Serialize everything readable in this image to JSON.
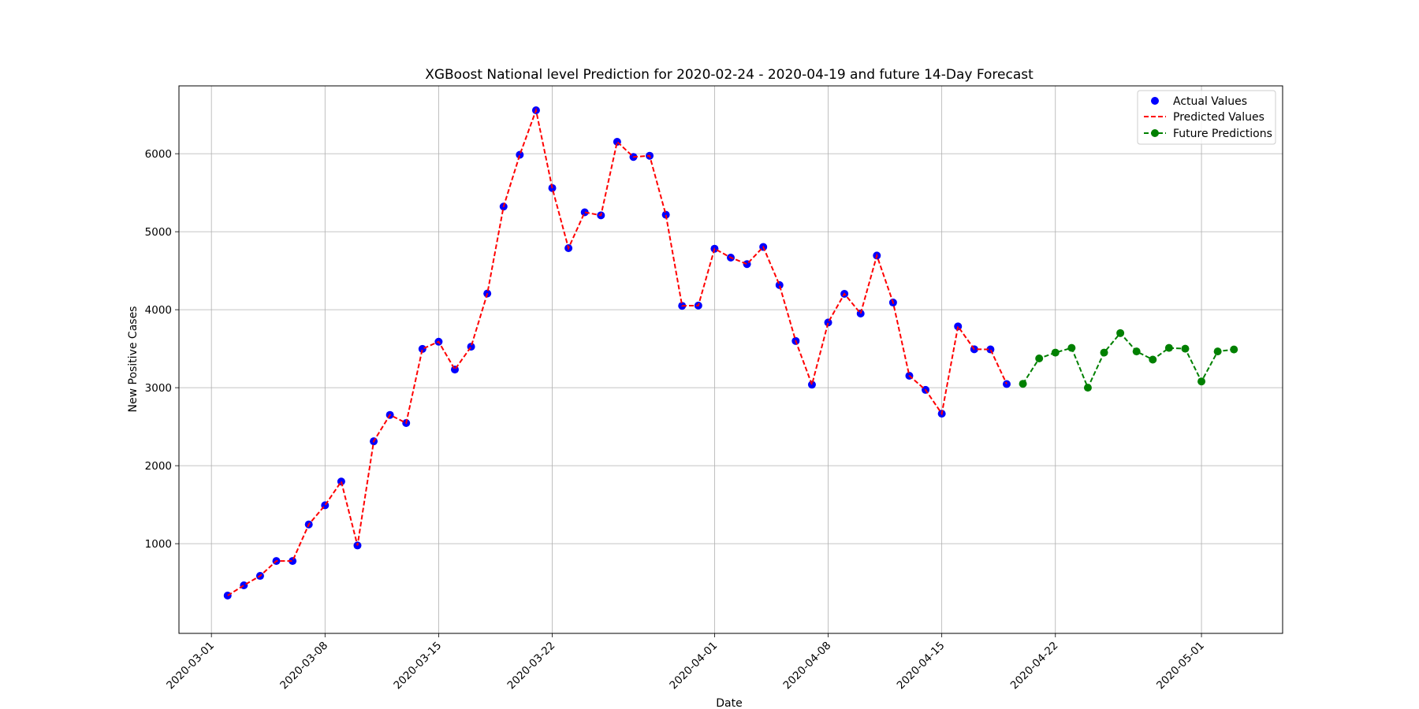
{
  "chart_data": {
    "type": "line",
    "title": "XGBoost National level Prediction for 2020-02-24 - 2020-04-19 and future 14-Day Forecast",
    "xlabel": "Date",
    "ylabel": "New Positive Cases",
    "xlim": [
      "2020-02-28",
      "2020-05-06"
    ],
    "ylim": [
      -150,
      6870
    ],
    "grid": true,
    "legend_position": "top-right",
    "x_ticks": [
      "2020-03-01",
      "2020-03-08",
      "2020-03-15",
      "2020-03-22",
      "2020-04-01",
      "2020-04-08",
      "2020-04-15",
      "2020-04-22",
      "2020-05-01"
    ],
    "y_ticks": [
      1000,
      2000,
      3000,
      4000,
      5000,
      6000
    ],
    "start_date": "2020-03-02",
    "actual": {
      "name": "Actual Values",
      "color": "#0000ff",
      "values": [
        335,
        466,
        587,
        778,
        778,
        1247,
        1492,
        1797,
        977,
        2313,
        2651,
        2547,
        3497,
        3590,
        3233,
        3526,
        4207,
        5322,
        5986,
        6557,
        5560,
        4789,
        5249,
        5210,
        6153,
        5959,
        5974,
        5217,
        4050,
        4053,
        4782,
        4668,
        4585,
        4805,
        4316,
        3599,
        3039,
        3836,
        4204,
        3951,
        4694,
        4092,
        3153,
        2972,
        2667,
        3786,
        3493,
        3491,
        3047
      ]
    },
    "predicted": {
      "name": "Predicted Values",
      "color": "#ff0000",
      "values": [
        335,
        466,
        587,
        778,
        778,
        1247,
        1492,
        1797,
        977,
        2313,
        2651,
        2547,
        3497,
        3590,
        3233,
        3526,
        4207,
        5322,
        5986,
        6557,
        5560,
        4789,
        5249,
        5210,
        6153,
        5959,
        5974,
        5217,
        4050,
        4053,
        4782,
        4668,
        4585,
        4805,
        4316,
        3599,
        3039,
        3836,
        4204,
        3951,
        4694,
        4092,
        3153,
        2972,
        2667,
        3786,
        3493,
        3491,
        3047
      ]
    },
    "future": {
      "name": "Future Predictions",
      "color": "#008000",
      "start_date": "2020-04-20",
      "values": [
        3050,
        3375,
        3450,
        3510,
        3000,
        3450,
        3700,
        3465,
        3360,
        3510,
        3500,
        3080,
        3465,
        3490
      ]
    }
  },
  "legend": {
    "actual_label": "Actual Values",
    "predicted_label": "Predicted Values",
    "future_label": "Future Predictions"
  }
}
